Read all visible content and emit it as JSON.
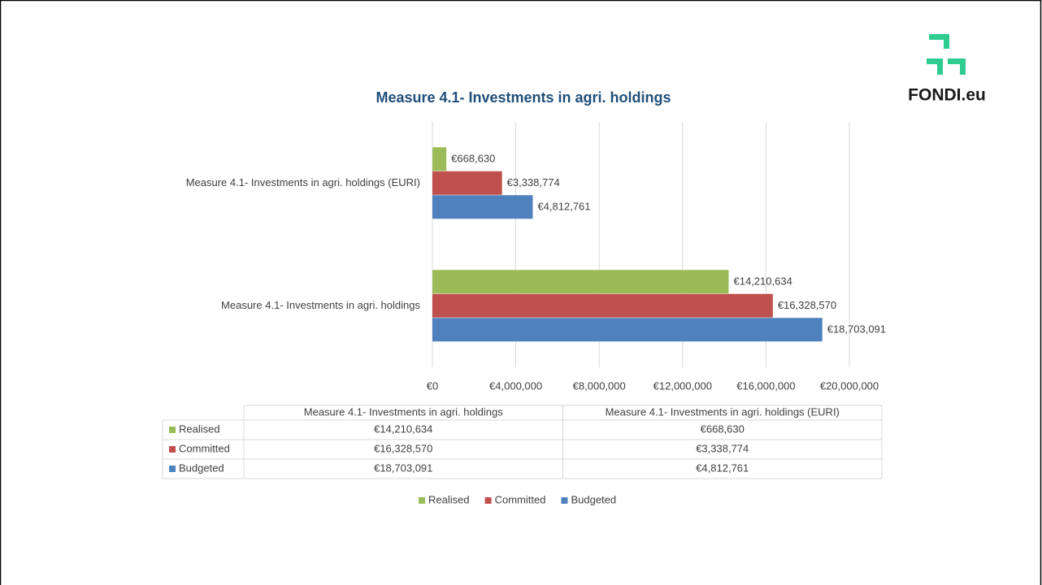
{
  "logo": "FONDI.eu",
  "chart_data": {
    "type": "hbar",
    "title": "Measure 4.1- Investments in agri. holdings",
    "categories": [
      "Measure 4.1- Investments in agri. holdings",
      "Measure 4.1- Investments in agri. holdings (EURI)"
    ],
    "series": [
      {
        "name": "Realised",
        "color": "#9bbb59",
        "values": [
          14210634,
          668630
        ],
        "value_labels": [
          "€14,210,634",
          "€668,630"
        ]
      },
      {
        "name": "Committed",
        "color": "#c0504d",
        "values": [
          16328570,
          3338774
        ],
        "value_labels": [
          "€16,328,570",
          "€3,338,774"
        ]
      },
      {
        "name": "Budgeted",
        "color": "#4f81bd",
        "values": [
          18703091,
          4812761
        ],
        "value_labels": [
          "€18,703,091",
          "€4,812,761"
        ]
      }
    ],
    "xlim": [
      0,
      20000000
    ],
    "xticks": [
      {
        "value": 0,
        "label": "€0"
      },
      {
        "value": 4000000,
        "label": "€4,000,000"
      },
      {
        "value": 8000000,
        "label": "€8,000,000"
      },
      {
        "value": 12000000,
        "label": "€12,000,000"
      },
      {
        "value": 16000000,
        "label": "€16,000,000"
      },
      {
        "value": 20000000,
        "label": "€20,000,000"
      }
    ],
    "grid": true,
    "legend": "bottom"
  }
}
